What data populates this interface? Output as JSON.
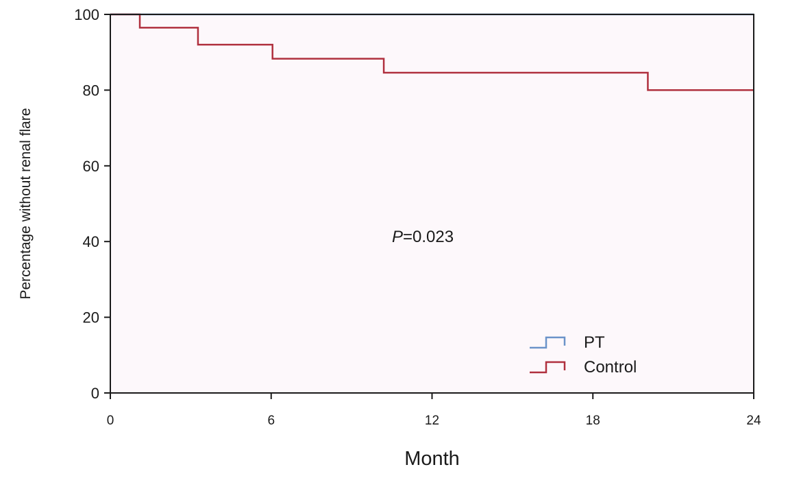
{
  "chart_data": {
    "type": "line",
    "step": true,
    "xlabel": "Month",
    "ylabel": "Percentage without renal flare",
    "xlim": [
      0,
      24
    ],
    "ylim": [
      0,
      100
    ],
    "xticks": [
      0,
      6,
      12,
      18,
      24
    ],
    "yticks": [
      0,
      20,
      40,
      60,
      80,
      100
    ],
    "grid": false,
    "legend_position": "bottom-right",
    "annotation": {
      "italic": "P",
      "text": "=0.023",
      "x": 12,
      "y": 44
    },
    "series": [
      {
        "name": "PT",
        "color": "#6b93c9",
        "x": [
          0,
          24
        ],
        "y": [
          100,
          100
        ]
      },
      {
        "name": "Control",
        "color": "#b0303e",
        "x": [
          0,
          1.1,
          3.27,
          6.05,
          10.2,
          20.05,
          24
        ],
        "y": [
          100,
          96.5,
          92,
          88.3,
          84.6,
          80,
          80
        ]
      }
    ],
    "background": "#fdf8fb"
  }
}
